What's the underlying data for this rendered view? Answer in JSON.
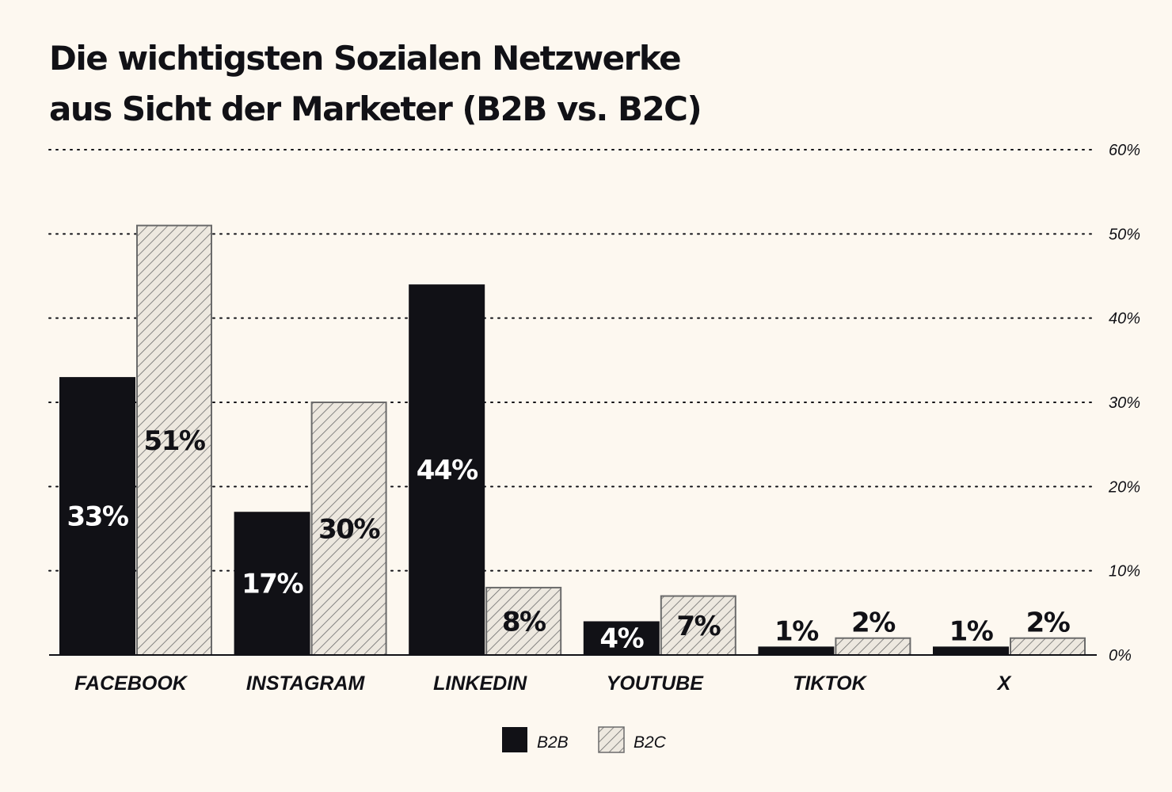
{
  "title": {
    "line1": "Die wichtigsten Sozialen Netzwerke",
    "line2": "aus Sicht der Marketer (B2B vs. B2C)"
  },
  "colors": {
    "background": "#fdf8f0",
    "b2b": "#111116",
    "b2c_fill": "#ede8df",
    "b2c_hatch": "#6b6b6b",
    "text": "#111116"
  },
  "chart_data": {
    "type": "bar",
    "title": "Die wichtigsten Sozialen Netzwerke aus Sicht der Marketer (B2B vs. B2C)",
    "categories": [
      "FACEBOOK",
      "INSTAGRAM",
      "LINKEDIN",
      "YOUTUBE",
      "TIKTOK",
      "X"
    ],
    "series": [
      {
        "name": "B2B",
        "values": [
          33,
          17,
          44,
          4,
          1,
          1
        ],
        "labels": [
          "33%",
          "17%",
          "44%",
          "4%",
          "1%",
          "1%"
        ],
        "style": "solid-dark"
      },
      {
        "name": "B2C",
        "values": [
          51,
          30,
          8,
          7,
          2,
          2
        ],
        "labels": [
          "51%",
          "30%",
          "8%",
          "7%",
          "2%",
          "2%"
        ],
        "style": "hatched"
      }
    ],
    "ylim": [
      0,
      60
    ],
    "yticks": [
      0,
      10,
      20,
      30,
      40,
      50,
      60
    ],
    "ytick_labels": [
      "0%",
      "10%",
      "20%",
      "30%",
      "40%",
      "50%",
      "60%"
    ],
    "y_axis_side": "right",
    "grid": "dotted horizontal",
    "legend": "bottom-center",
    "xlabel": "",
    "ylabel": ""
  }
}
